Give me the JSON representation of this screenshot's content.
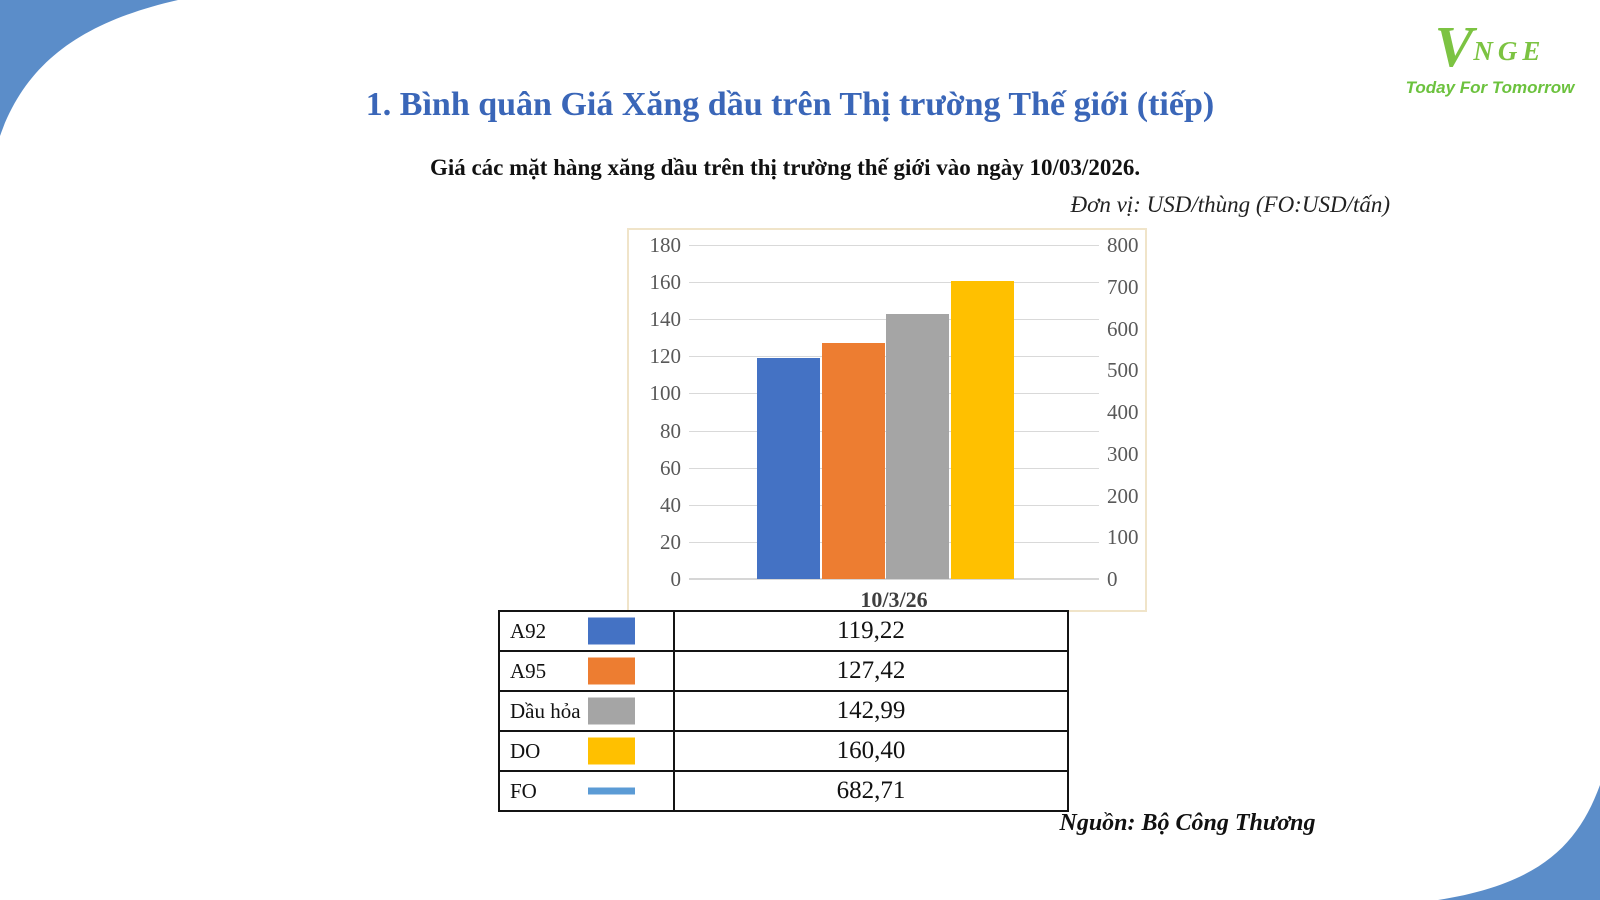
{
  "page": {
    "title": "1. Bình quân Giá Xăng dầu trên Thị trường Thế giới (tiếp)",
    "subtitle": "Giá các mặt hàng xăng dầu trên thị trường thế giới vào ngày 10/03/2026.",
    "unit_note": "Đơn vị: USD/thùng (FO:USD/tấn)",
    "source": "Nguồn: Bộ Công Thương"
  },
  "logo": {
    "v": "V",
    "name": "NGE",
    "tagline": "Today For Tomorrow",
    "green": "#7cc342"
  },
  "decor": {
    "swoosh_color": "#5b8dc9"
  },
  "chart_data": {
    "type": "bar",
    "title": "",
    "categories": [
      "10/3/26"
    ],
    "x_label": "10/3/26",
    "series": [
      {
        "name": "A92",
        "values": [
          119.22
        ],
        "color": "#4472c4",
        "axis": "left",
        "style": "bar"
      },
      {
        "name": "A95",
        "values": [
          127.42
        ],
        "color": "#ed7d31",
        "axis": "left",
        "style": "bar"
      },
      {
        "name": "Dầu hỏa",
        "values": [
          142.99
        ],
        "color": "#a5a5a5",
        "axis": "left",
        "style": "bar"
      },
      {
        "name": "DO",
        "values": [
          160.4
        ],
        "color": "#ffc000",
        "axis": "left",
        "style": "bar"
      },
      {
        "name": "FO",
        "values": [
          682.71
        ],
        "color": "#5b9bd5",
        "axis": "right",
        "style": "line"
      }
    ],
    "left_axis": {
      "min": 0,
      "max": 180,
      "step": 20,
      "ticks": [
        0,
        20,
        40,
        60,
        80,
        100,
        120,
        140,
        160,
        180
      ]
    },
    "right_axis": {
      "min": 0,
      "max": 800,
      "step": 100,
      "ticks": [
        0,
        100,
        200,
        300,
        400,
        500,
        600,
        700,
        800
      ]
    },
    "grid": true,
    "legend_position": "table-below-chart"
  },
  "legend_table": {
    "rows": [
      {
        "label": "A92",
        "value": "119,22",
        "swatch": "bar",
        "color": "#4472c4"
      },
      {
        "label": "A95",
        "value": "127,42",
        "swatch": "bar",
        "color": "#ed7d31"
      },
      {
        "label": "Dầu hỏa",
        "value": "142,99",
        "swatch": "bar",
        "color": "#a5a5a5"
      },
      {
        "label": "DO",
        "value": "160,40",
        "swatch": "bar",
        "color": "#ffc000"
      },
      {
        "label": "FO",
        "value": "682,71",
        "swatch": "line",
        "color": "#5b9bd5"
      }
    ]
  }
}
